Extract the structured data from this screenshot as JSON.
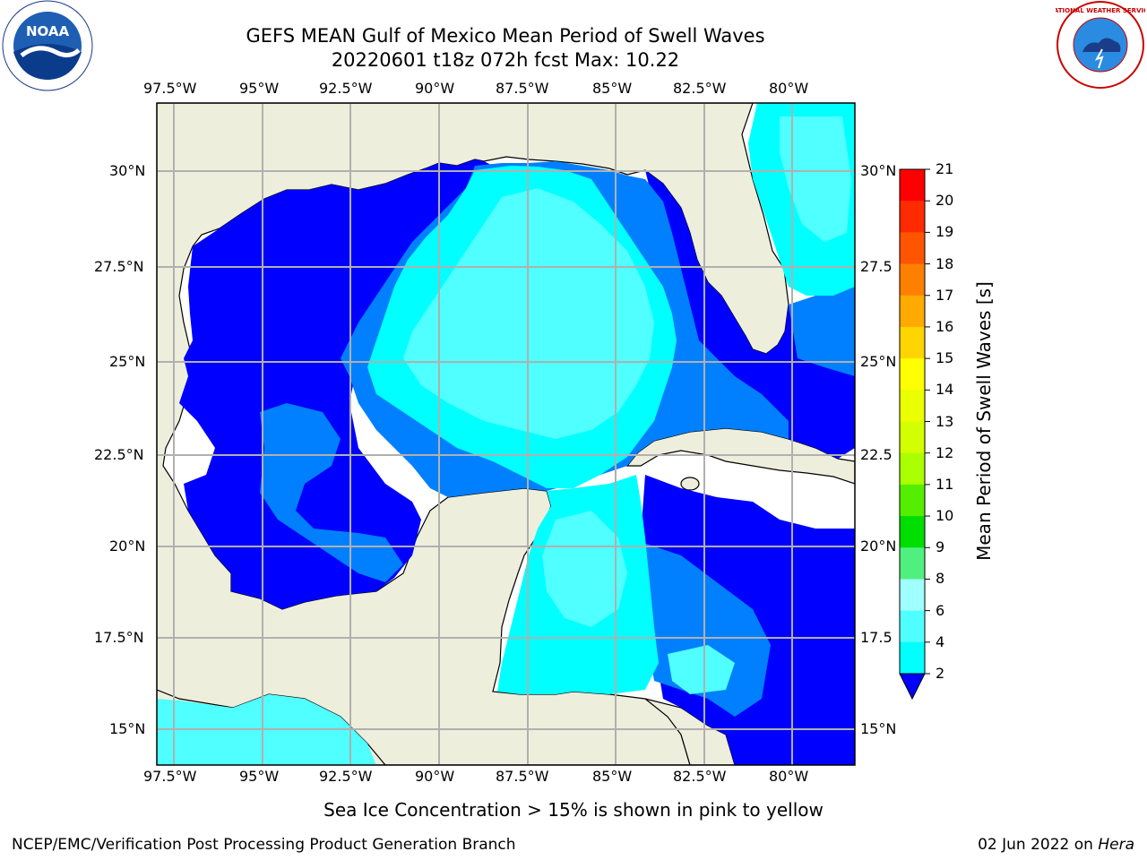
{
  "header": {
    "title_line1": "GEFS MEAN Gulf of Mexico Mean Period of Swell Waves",
    "title_line2": "20220601 t18z 072h fcst   Max: 10.22"
  },
  "logos": {
    "left_text": "NOAA",
    "right_text": "NATIONAL WEATHER SERVICE"
  },
  "axes": {
    "lon_labels": [
      "97.5°W",
      "95°W",
      "92.5°W",
      "90°W",
      "87.5°W",
      "85°W",
      "82.5°W",
      "80°W"
    ],
    "lat_labels_left": [
      "30°N",
      "27.5°N",
      "25°N",
      "22.5°N",
      "20°N",
      "17.5°N",
      "15°N"
    ],
    "lat_labels_right": [
      "30°N",
      "27.5",
      "25°N",
      "22.5",
      "20°N",
      "17.5",
      "15°N"
    ]
  },
  "colorbar": {
    "label": "Mean Period of Swell Waves [s]",
    "ticks": [
      "21",
      "20",
      "19",
      "18",
      "17",
      "16",
      "15",
      "14",
      "13",
      "12",
      "11",
      "10",
      "9",
      "8",
      "6",
      "4",
      "2"
    ],
    "colors": [
      "#ff0000",
      "#ff2a00",
      "#ff5500",
      "#ff7f00",
      "#ffaa00",
      "#ffd400",
      "#ffff00",
      "#eaff00",
      "#d4ff00",
      "#aaff00",
      "#55ee00",
      "#00dd00",
      "#50f080",
      "#a0ffff",
      "#50ffff",
      "#00ffff",
      "#0080ff"
    ],
    "under_color": "#0000ff"
  },
  "map": {
    "land_color": "#eeeedd",
    "grid_color": "#b0b0b0",
    "legend_colors": {
      "period_0_2": "#0000ff",
      "period_2_4": "#0080ff",
      "period_4_6": "#00ffff",
      "period_6_8": "#50ffff"
    }
  },
  "notes": {
    "ice_note": "Sea Ice Concentration > 15% is shown in pink to yellow"
  },
  "footer": {
    "left": "NCEP/EMC/Verification Post Processing Product Generation Branch",
    "right_date": "02 Jun 2022 on",
    "right_host": "Hera"
  }
}
